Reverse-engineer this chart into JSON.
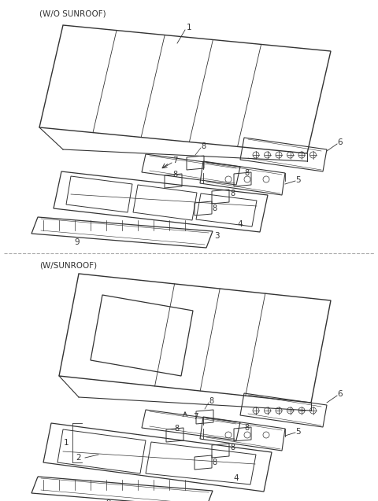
{
  "bg_color": "#ffffff",
  "line_color": "#333333",
  "fig_width": 4.8,
  "fig_height": 6.37,
  "dpi": 100,
  "section1_label": "(W/O SUNROOF)",
  "section2_label": "(W/SUNROOF)",
  "divider_color": "#aaaaaa"
}
